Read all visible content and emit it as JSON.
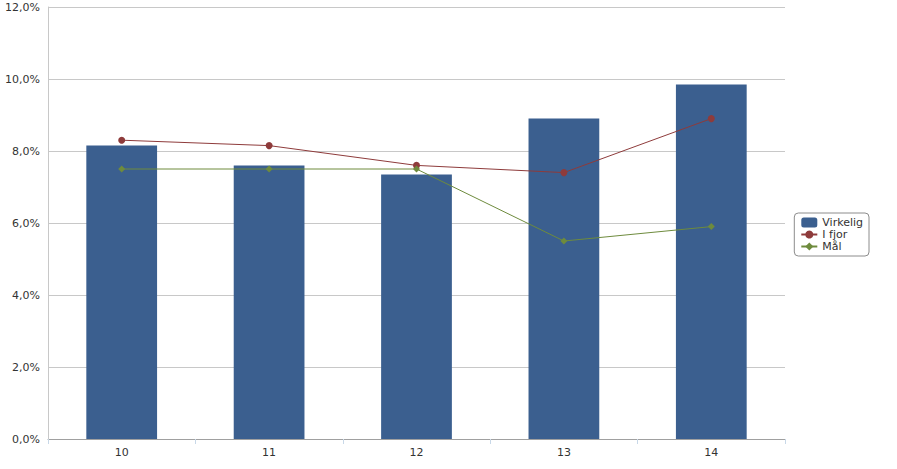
{
  "chart_data": {
    "type": "bar",
    "categories": [
      "10",
      "11",
      "12",
      "13",
      "14"
    ],
    "series": [
      {
        "name": "Virkelig",
        "type": "bar",
        "color": "#3b5f8f",
        "values": [
          8.15,
          7.6,
          7.35,
          8.9,
          9.85
        ]
      },
      {
        "name": "I fjor",
        "type": "line",
        "color": "#8e3b3b",
        "marker": "circle",
        "values": [
          8.3,
          8.15,
          7.6,
          7.4,
          8.9
        ]
      },
      {
        "name": "Mål",
        "type": "line",
        "color": "#6e8b3d",
        "marker": "diamond",
        "values": [
          7.5,
          7.5,
          7.5,
          5.5,
          5.9
        ]
      }
    ],
    "ylim": [
      0,
      12
    ],
    "yticks": [
      {
        "value": 0,
        "label": "0,0%"
      },
      {
        "value": 2,
        "label": "2,0%"
      },
      {
        "value": 4,
        "label": "4,0%"
      },
      {
        "value": 6,
        "label": "6,0%"
      },
      {
        "value": 8,
        "label": "8,0%"
      },
      {
        "value": 10,
        "label": "10,0%"
      },
      {
        "value": 12,
        "label": "12,0%"
      }
    ],
    "grid": true,
    "legend": "right"
  }
}
